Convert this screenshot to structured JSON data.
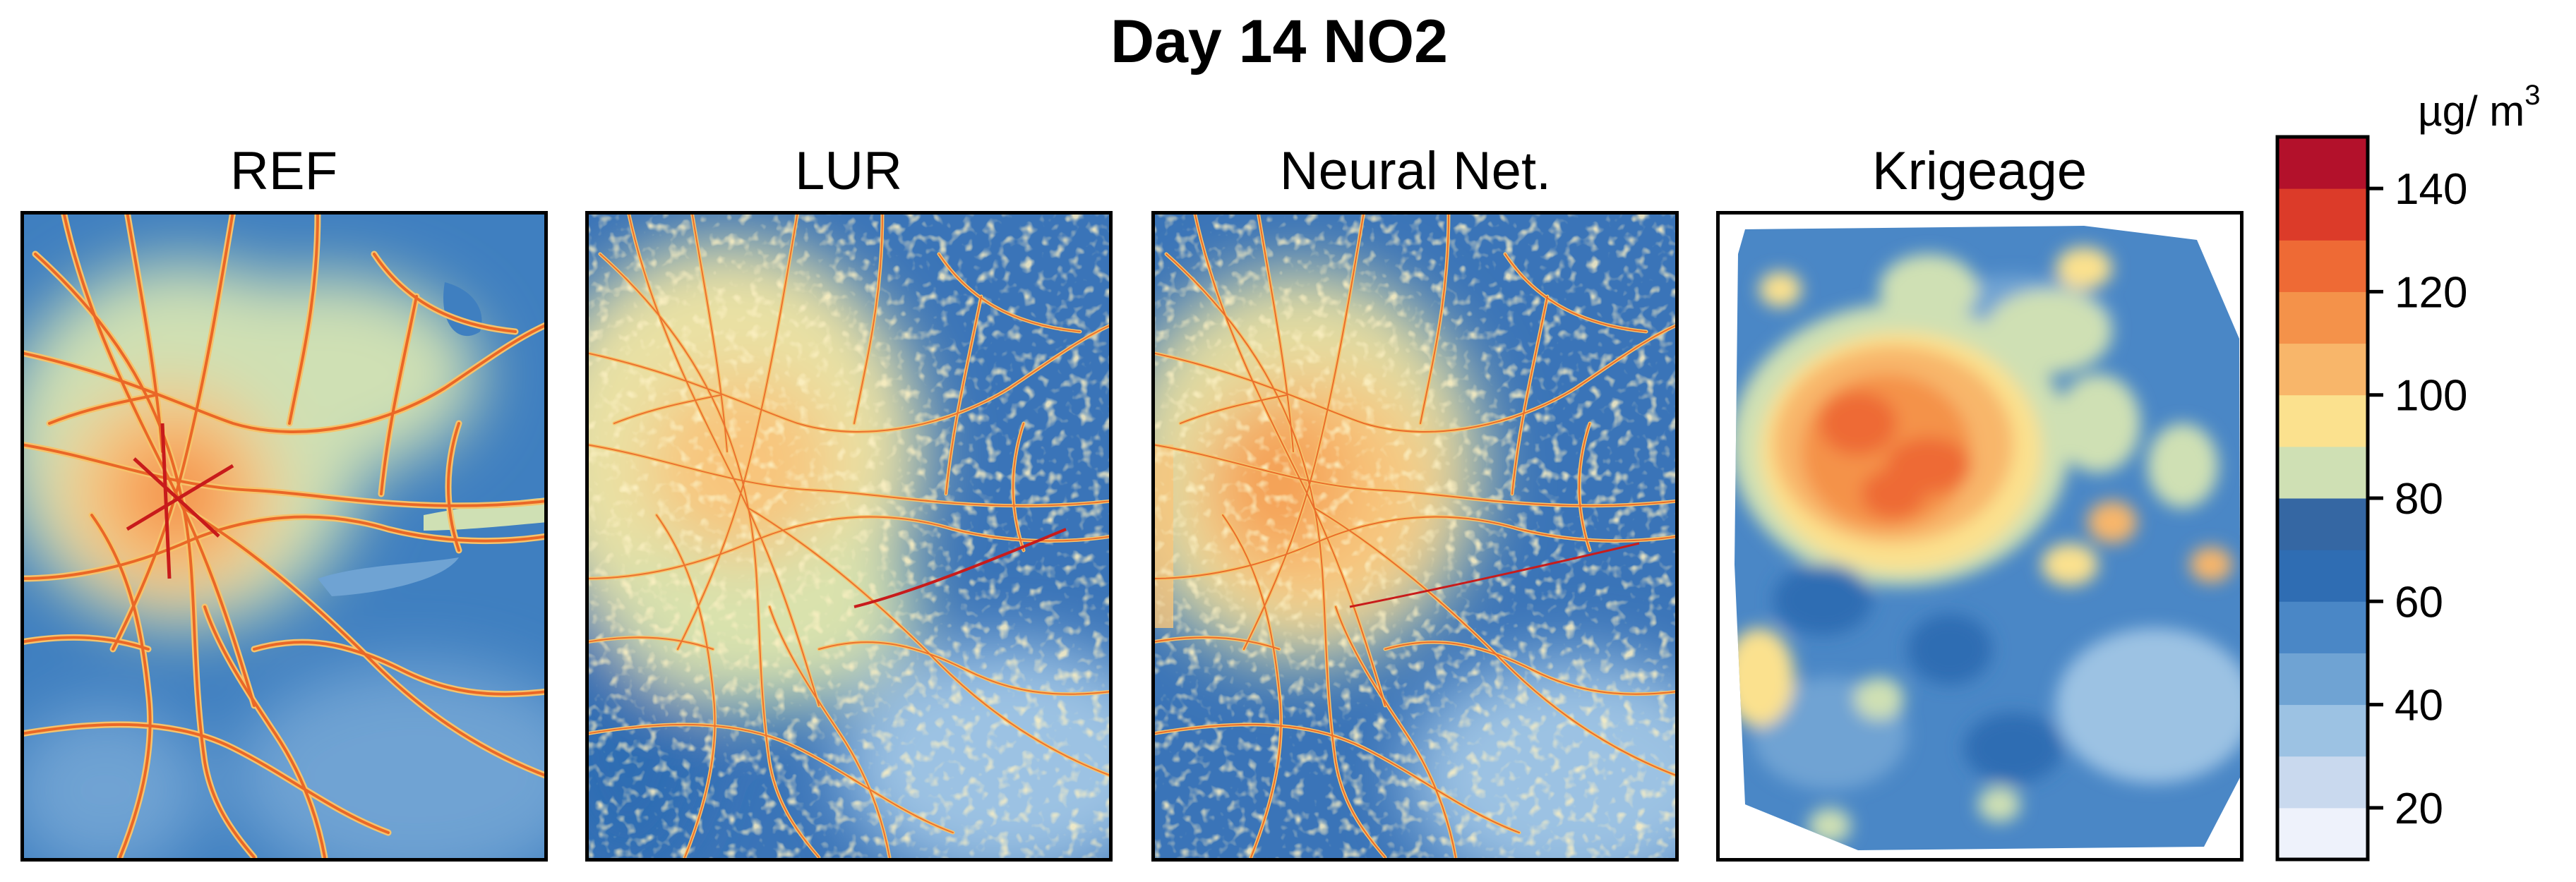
{
  "figure": {
    "title": "Day 14 NO2",
    "panels": [
      {
        "label": "REF"
      },
      {
        "label": "LUR"
      },
      {
        "label": "Neural Net."
      },
      {
        "label": "Krigeage"
      }
    ]
  },
  "colorbar": {
    "unit": "µg/ m",
    "unit_superscript": "3",
    "tick_labels": [
      "20",
      "40",
      "60",
      "80",
      "100",
      "120",
      "140"
    ],
    "tick_values": [
      20,
      40,
      60,
      80,
      100,
      120,
      140
    ],
    "range": [
      10,
      150
    ],
    "step": 10,
    "bin_colors": [
      "#eef2fb",
      "#c9d9ee",
      "#9cc2e3",
      "#6fa3d3",
      "#4a87c6",
      "#2f6db3",
      "#3567a3",
      "#cfe0b4",
      "#fbe18e",
      "#f8b66a",
      "#f4924a",
      "#ee6a35",
      "#dc3b29",
      "#b3112b"
    ]
  }
}
